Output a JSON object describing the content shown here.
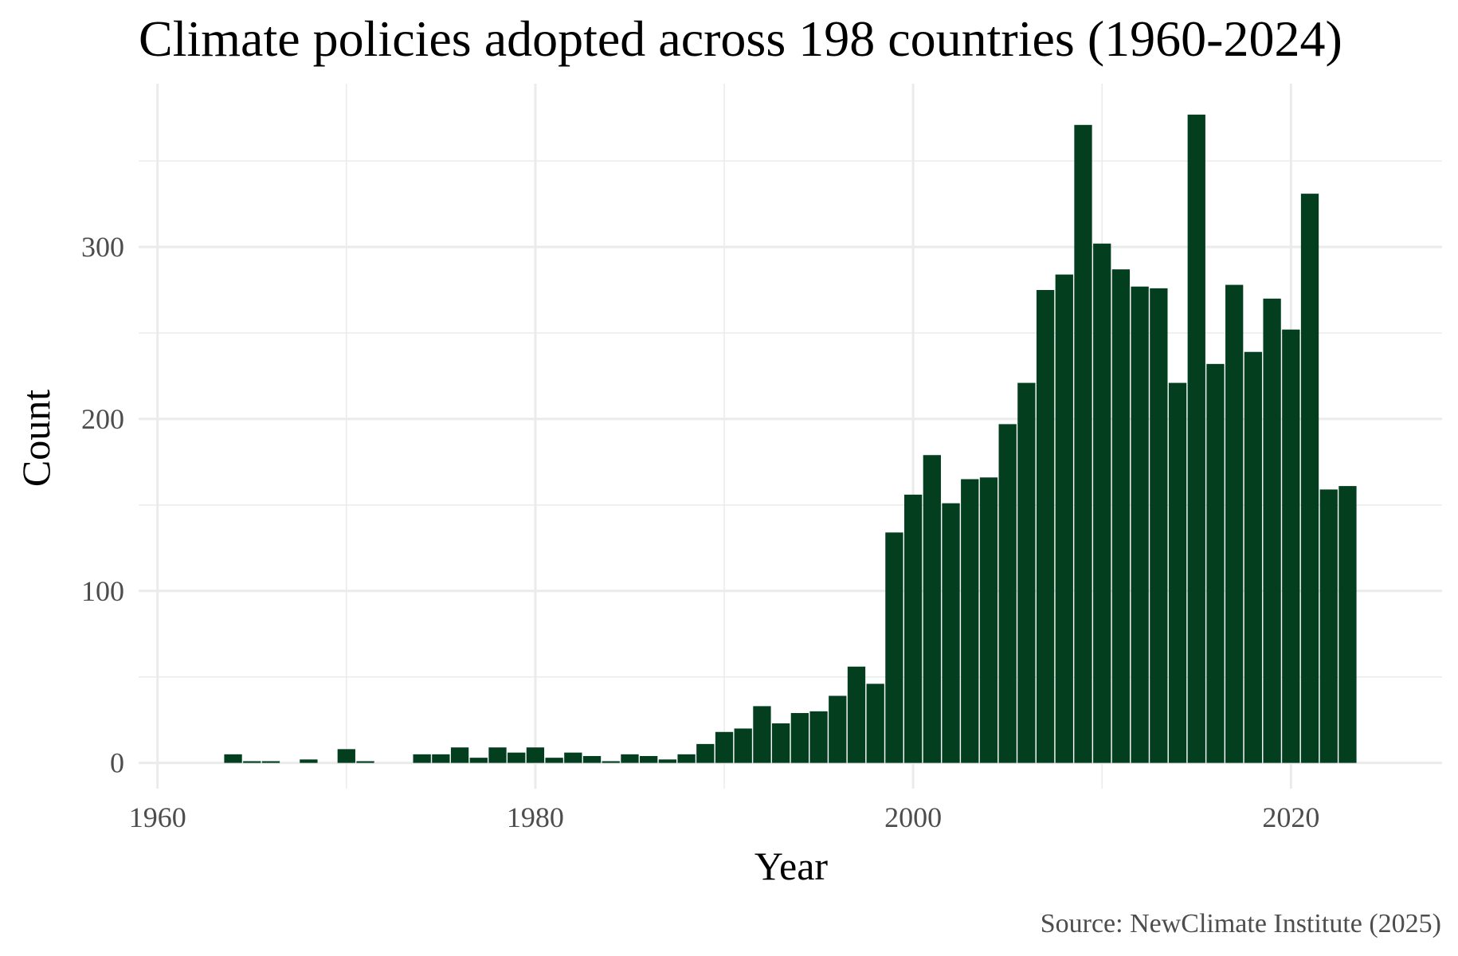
{
  "chart_data": {
    "type": "bar",
    "title": "Climate policies adopted across 198 countries (1960-2024)",
    "xlabel": "Year",
    "ylabel": "Count",
    "caption": "Source: NewClimate Institute (2025)",
    "xlim": [
      1959,
      2028
    ],
    "ylim": [
      -15,
      395
    ],
    "x_ticks": [
      1960,
      1980,
      2000,
      2020
    ],
    "y_ticks": [
      0,
      100,
      200,
      300
    ],
    "bar_color": "#033F1E",
    "grid": true,
    "x": [
      1964,
      1965,
      1966,
      1968,
      1970,
      1971,
      1974,
      1975,
      1976,
      1977,
      1978,
      1979,
      1980,
      1981,
      1982,
      1983,
      1984,
      1985,
      1986,
      1987,
      1988,
      1989,
      1990,
      1991,
      1992,
      1993,
      1994,
      1995,
      1996,
      1997,
      1998,
      1999,
      2000,
      2001,
      2002,
      2003,
      2004,
      2005,
      2006,
      2007,
      2008,
      2009,
      2010,
      2011,
      2012,
      2013,
      2014,
      2015,
      2016,
      2017,
      2018,
      2019,
      2020,
      2021,
      2022,
      2023
    ],
    "values": [
      5,
      1,
      1,
      2,
      8,
      1,
      5,
      5,
      9,
      3,
      9,
      6,
      9,
      3,
      6,
      4,
      1,
      5,
      4,
      2,
      5,
      11,
      18,
      20,
      33,
      23,
      29,
      30,
      39,
      56,
      46,
      134,
      156,
      179,
      151,
      165,
      166,
      197,
      221,
      275,
      284,
      371,
      302,
      287,
      277,
      276,
      221,
      377,
      232,
      278,
      239,
      270,
      252,
      331,
      159,
      161
    ]
  }
}
